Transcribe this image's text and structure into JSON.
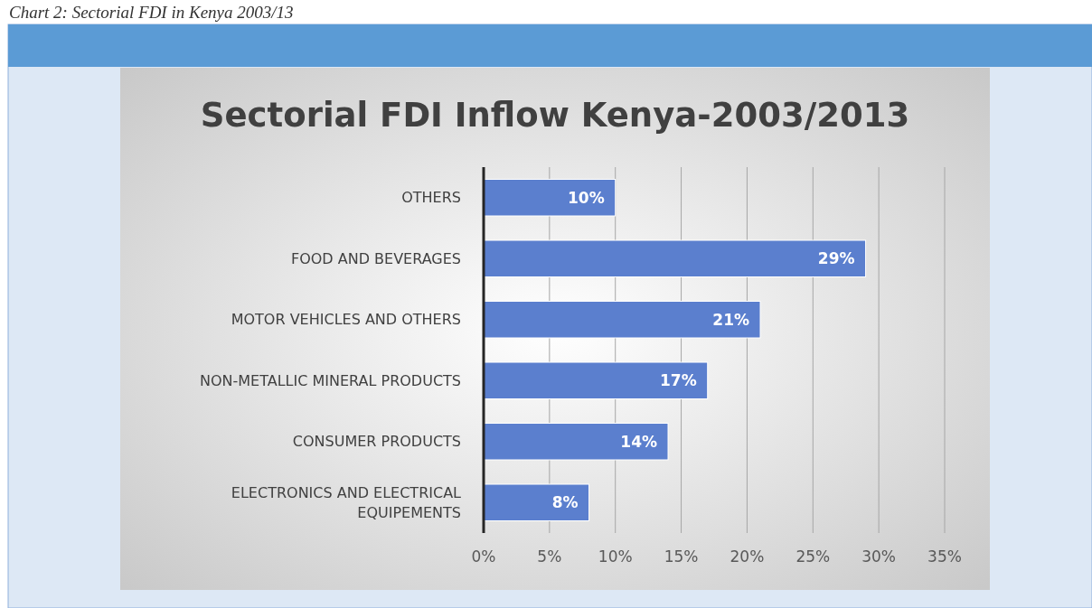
{
  "chart_data": {
    "type": "bar",
    "orientation": "horizontal",
    "title": "Sectorial FDI Inflow Kenya-2003/2013",
    "annotations": [
      "Chart 2: Sectorial FDI in Kenya 2003/13"
    ],
    "categories": [
      "OTHERS",
      "FOOD AND BEVERAGES",
      "MOTOR VEHICLES AND OTHERS",
      "NON-METALLIC MINERAL PRODUCTS",
      "CONSUMER PRODUCTS",
      "ELECTRONICS AND ELECTRICAL EQUIPEMENTS"
    ],
    "values": [
      10,
      29,
      21,
      17,
      14,
      8
    ],
    "value_labels": [
      "10%",
      "29%",
      "21%",
      "17%",
      "14%",
      "8%"
    ],
    "color": "#5b7fce",
    "xlim": [
      0,
      35
    ],
    "xticks": [
      {
        "value": 0,
        "label": "0%"
      },
      {
        "value": 5,
        "label": "5%"
      },
      {
        "value": 10,
        "label": "10%"
      },
      {
        "value": 15,
        "label": "15%"
      },
      {
        "value": 20,
        "label": "20%"
      },
      {
        "value": 25,
        "label": "25%"
      },
      {
        "value": 30,
        "label": "30%"
      },
      {
        "value": 35,
        "label": "35%"
      }
    ],
    "grid": "x"
  }
}
